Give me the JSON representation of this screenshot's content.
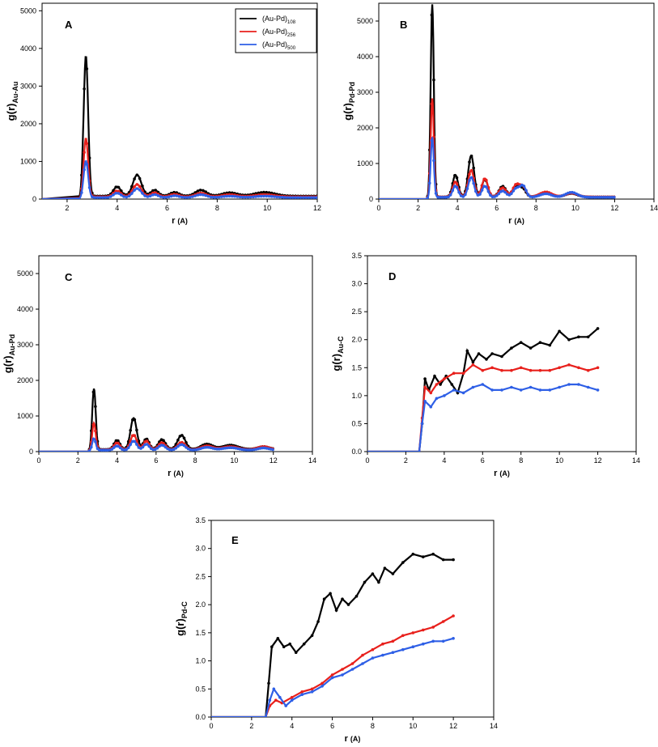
{
  "legend": {
    "base_label": "(Au-Pd)",
    "entries": [
      {
        "sub": "108",
        "color": "#000000"
      },
      {
        "sub": "256",
        "color": "#e8201c"
      },
      {
        "sub": "500",
        "color": "#2e5fe6"
      }
    ]
  },
  "chart_data": [
    {
      "id": "A",
      "type": "line",
      "panel_label": "A",
      "xlabel": "r",
      "xunit": "(A)",
      "ylabel": "g(r)",
      "ylabel_sub": "Au-Au",
      "xlim": [
        1,
        12
      ],
      "ylim": [
        0,
        5200
      ],
      "xticks": [
        2,
        4,
        6,
        8,
        10,
        12
      ],
      "yticks": [
        0,
        1000,
        2000,
        3000,
        4000,
        5000
      ],
      "peaks": [
        {
          "r": 2.75,
          "w": 0.09,
          "h": [
            3760,
            1580,
            990
          ]
        },
        {
          "r": 4.0,
          "w": 0.15,
          "h": [
            250,
            160,
            120
          ]
        },
        {
          "r": 4.8,
          "w": 0.17,
          "h": [
            560,
            330,
            240
          ]
        },
        {
          "r": 5.5,
          "w": 0.15,
          "h": [
            160,
            110,
            80
          ]
        },
        {
          "r": 6.3,
          "w": 0.18,
          "h": [
            100,
            70,
            50
          ]
        },
        {
          "r": 7.35,
          "w": 0.22,
          "h": [
            160,
            100,
            80
          ]
        },
        {
          "r": 8.5,
          "w": 0.3,
          "h": [
            90,
            60,
            40
          ]
        },
        {
          "r": 9.9,
          "w": 0.4,
          "h": [
            100,
            60,
            40
          ]
        }
      ],
      "baseline": [
        80,
        60,
        40
      ],
      "r_start": 2.5,
      "r_end": 12
    },
    {
      "id": "B",
      "type": "line",
      "panel_label": "B",
      "xlabel": "r",
      "xunit": "(A)",
      "ylabel": "g(r)",
      "ylabel_sub": "Pd-Pd",
      "xlim": [
        0,
        14
      ],
      "ylim": [
        0,
        5500
      ],
      "xticks": [
        0,
        2,
        4,
        6,
        8,
        10,
        12,
        14
      ],
      "yticks": [
        0,
        1000,
        2000,
        3000,
        4000,
        5000
      ],
      "peaks": [
        {
          "r": 2.72,
          "w": 0.08,
          "h": [
            5420,
            2780,
            1700
          ]
        },
        {
          "r": 3.9,
          "w": 0.14,
          "h": [
            620,
            430,
            320
          ]
        },
        {
          "r": 4.7,
          "w": 0.15,
          "h": [
            1160,
            750,
            560
          ]
        },
        {
          "r": 5.4,
          "w": 0.15,
          "h": [
            500,
            520,
            320
          ]
        },
        {
          "r": 6.3,
          "w": 0.18,
          "h": [
            300,
            260,
            180
          ]
        },
        {
          "r": 7.0,
          "w": 0.18,
          "h": [
            320,
            350,
            250
          ]
        },
        {
          "r": 7.35,
          "w": 0.15,
          "h": [
            200,
            260,
            300
          ]
        },
        {
          "r": 8.5,
          "w": 0.3,
          "h": [
            130,
            140,
            100
          ]
        },
        {
          "r": 9.8,
          "w": 0.3,
          "h": [
            100,
            110,
            140
          ]
        }
      ],
      "baseline": [
        60,
        60,
        50
      ],
      "r_start": 2.4,
      "r_end": 12
    },
    {
      "id": "C",
      "type": "line",
      "panel_label": "C",
      "xlabel": "r",
      "xunit": "(A)",
      "ylabel": "g(r)",
      "ylabel_sub": "Au-Pd",
      "xlim": [
        0,
        14
      ],
      "ylim": [
        0,
        5500
      ],
      "xticks": [
        0,
        2,
        4,
        6,
        8,
        10,
        12,
        14
      ],
      "yticks": [
        0,
        1000,
        2000,
        3000,
        4000,
        5000
      ],
      "peaks": [
        {
          "r": 2.82,
          "w": 0.09,
          "h": [
            1720,
            760,
            340
          ]
        },
        {
          "r": 4.0,
          "w": 0.15,
          "h": [
            260,
            200,
            120
          ]
        },
        {
          "r": 4.85,
          "w": 0.16,
          "h": [
            880,
            420,
            260
          ]
        },
        {
          "r": 5.5,
          "w": 0.15,
          "h": [
            300,
            250,
            170
          ]
        },
        {
          "r": 6.3,
          "w": 0.18,
          "h": [
            280,
            200,
            140
          ]
        },
        {
          "r": 7.3,
          "w": 0.2,
          "h": [
            400,
            210,
            160
          ]
        },
        {
          "r": 8.6,
          "w": 0.3,
          "h": [
            150,
            110,
            80
          ]
        },
        {
          "r": 9.8,
          "w": 0.4,
          "h": [
            120,
            90,
            70
          ]
        },
        {
          "r": 11.5,
          "w": 0.3,
          "h": [
            80,
            90,
            60
          ]
        }
      ],
      "baseline": [
        60,
        50,
        40
      ],
      "r_start": 2.5,
      "r_end": 12
    },
    {
      "id": "D",
      "type": "line",
      "panel_label": "D",
      "xlabel": "r",
      "xunit": "(A)",
      "ylabel": "g(r)",
      "ylabel_sub": "Au-C",
      "xlim": [
        0,
        14
      ],
      "ylim": [
        0,
        3.5
      ],
      "xticks": [
        0,
        2,
        4,
        6,
        8,
        10,
        12,
        14
      ],
      "yticks": [
        0.0,
        0.5,
        1.0,
        1.5,
        2.0,
        2.5,
        3.0,
        3.5
      ],
      "series_points": [
        [
          [
            0,
            0
          ],
          [
            2.7,
            0
          ],
          [
            2.85,
            0.5
          ],
          [
            3.0,
            1.3
          ],
          [
            3.2,
            1.1
          ],
          [
            3.5,
            1.35
          ],
          [
            3.8,
            1.2
          ],
          [
            4.1,
            1.35
          ],
          [
            4.4,
            1.2
          ],
          [
            4.7,
            1.05
          ],
          [
            5.0,
            1.4
          ],
          [
            5.2,
            1.8
          ],
          [
            5.5,
            1.6
          ],
          [
            5.8,
            1.75
          ],
          [
            6.2,
            1.65
          ],
          [
            6.5,
            1.75
          ],
          [
            7.0,
            1.7
          ],
          [
            7.5,
            1.85
          ],
          [
            8.0,
            1.95
          ],
          [
            8.5,
            1.85
          ],
          [
            9.0,
            1.95
          ],
          [
            9.5,
            1.9
          ],
          [
            10.0,
            2.15
          ],
          [
            10.5,
            2.0
          ],
          [
            11.0,
            2.05
          ],
          [
            11.5,
            2.05
          ],
          [
            12.0,
            2.2
          ]
        ],
        [
          [
            0,
            0
          ],
          [
            2.7,
            0
          ],
          [
            2.85,
            0.6
          ],
          [
            3.0,
            1.15
          ],
          [
            3.3,
            1.05
          ],
          [
            3.6,
            1.2
          ],
          [
            4.0,
            1.3
          ],
          [
            4.5,
            1.4
          ],
          [
            5.0,
            1.4
          ],
          [
            5.5,
            1.55
          ],
          [
            6.0,
            1.45
          ],
          [
            6.5,
            1.5
          ],
          [
            7.0,
            1.45
          ],
          [
            7.5,
            1.45
          ],
          [
            8.0,
            1.5
          ],
          [
            8.5,
            1.45
          ],
          [
            9.0,
            1.45
          ],
          [
            9.5,
            1.45
          ],
          [
            10.0,
            1.5
          ],
          [
            10.5,
            1.55
          ],
          [
            11.0,
            1.5
          ],
          [
            11.5,
            1.45
          ],
          [
            12.0,
            1.5
          ]
        ],
        [
          [
            0,
            0
          ],
          [
            2.7,
            0
          ],
          [
            2.85,
            0.5
          ],
          [
            3.0,
            0.9
          ],
          [
            3.3,
            0.8
          ],
          [
            3.6,
            0.95
          ],
          [
            4.0,
            1.0
          ],
          [
            4.5,
            1.1
          ],
          [
            5.0,
            1.05
          ],
          [
            5.5,
            1.15
          ],
          [
            6.0,
            1.2
          ],
          [
            6.5,
            1.1
          ],
          [
            7.0,
            1.1
          ],
          [
            7.5,
            1.15
          ],
          [
            8.0,
            1.1
          ],
          [
            8.5,
            1.15
          ],
          [
            9.0,
            1.1
          ],
          [
            9.5,
            1.1
          ],
          [
            10.0,
            1.15
          ],
          [
            10.5,
            1.2
          ],
          [
            11.0,
            1.2
          ],
          [
            11.5,
            1.15
          ],
          [
            12.0,
            1.1
          ]
        ]
      ]
    },
    {
      "id": "E",
      "type": "line",
      "panel_label": "E",
      "xlabel": "r",
      "xunit": "(A)",
      "ylabel": "g(r)",
      "ylabel_sub": "Pd-C",
      "xlim": [
        0,
        14
      ],
      "ylim": [
        0,
        3.5
      ],
      "xticks": [
        0,
        2,
        4,
        6,
        8,
        10,
        12,
        14
      ],
      "yticks": [
        0.0,
        0.5,
        1.0,
        1.5,
        2.0,
        2.5,
        3.0,
        3.5
      ],
      "series_points": [
        [
          [
            0,
            0
          ],
          [
            2.7,
            0
          ],
          [
            2.85,
            0.6
          ],
          [
            3.0,
            1.25
          ],
          [
            3.3,
            1.4
          ],
          [
            3.6,
            1.25
          ],
          [
            3.9,
            1.3
          ],
          [
            4.2,
            1.15
          ],
          [
            4.6,
            1.3
          ],
          [
            5.0,
            1.45
          ],
          [
            5.3,
            1.7
          ],
          [
            5.6,
            2.1
          ],
          [
            5.9,
            2.2
          ],
          [
            6.2,
            1.9
          ],
          [
            6.5,
            2.1
          ],
          [
            6.8,
            2.0
          ],
          [
            7.2,
            2.15
          ],
          [
            7.6,
            2.4
          ],
          [
            8.0,
            2.55
          ],
          [
            8.3,
            2.4
          ],
          [
            8.6,
            2.65
          ],
          [
            9.0,
            2.55
          ],
          [
            9.5,
            2.75
          ],
          [
            10.0,
            2.9
          ],
          [
            10.5,
            2.85
          ],
          [
            11.0,
            2.9
          ],
          [
            11.5,
            2.8
          ],
          [
            12.0,
            2.8
          ]
        ],
        [
          [
            0,
            0
          ],
          [
            2.7,
            0
          ],
          [
            2.9,
            0.2
          ],
          [
            3.2,
            0.3
          ],
          [
            3.5,
            0.25
          ],
          [
            4.0,
            0.35
          ],
          [
            4.5,
            0.45
          ],
          [
            5.0,
            0.5
          ],
          [
            5.5,
            0.6
          ],
          [
            6.0,
            0.75
          ],
          [
            6.5,
            0.85
          ],
          [
            7.0,
            0.95
          ],
          [
            7.5,
            1.1
          ],
          [
            8.0,
            1.2
          ],
          [
            8.5,
            1.3
          ],
          [
            9.0,
            1.35
          ],
          [
            9.5,
            1.45
          ],
          [
            10.0,
            1.5
          ],
          [
            10.5,
            1.55
          ],
          [
            11.0,
            1.6
          ],
          [
            11.5,
            1.7
          ],
          [
            12.0,
            1.8
          ]
        ],
        [
          [
            0,
            0
          ],
          [
            2.7,
            0
          ],
          [
            2.9,
            0.3
          ],
          [
            3.1,
            0.5
          ],
          [
            3.4,
            0.35
          ],
          [
            3.7,
            0.2
          ],
          [
            4.0,
            0.3
          ],
          [
            4.5,
            0.4
          ],
          [
            5.0,
            0.45
          ],
          [
            5.5,
            0.55
          ],
          [
            6.0,
            0.7
          ],
          [
            6.5,
            0.75
          ],
          [
            7.0,
            0.85
          ],
          [
            7.5,
            0.95
          ],
          [
            8.0,
            1.05
          ],
          [
            8.5,
            1.1
          ],
          [
            9.0,
            1.15
          ],
          [
            9.5,
            1.2
          ],
          [
            10.0,
            1.25
          ],
          [
            10.5,
            1.3
          ],
          [
            11.0,
            1.35
          ],
          [
            11.5,
            1.35
          ],
          [
            12.0,
            1.4
          ]
        ]
      ]
    }
  ]
}
